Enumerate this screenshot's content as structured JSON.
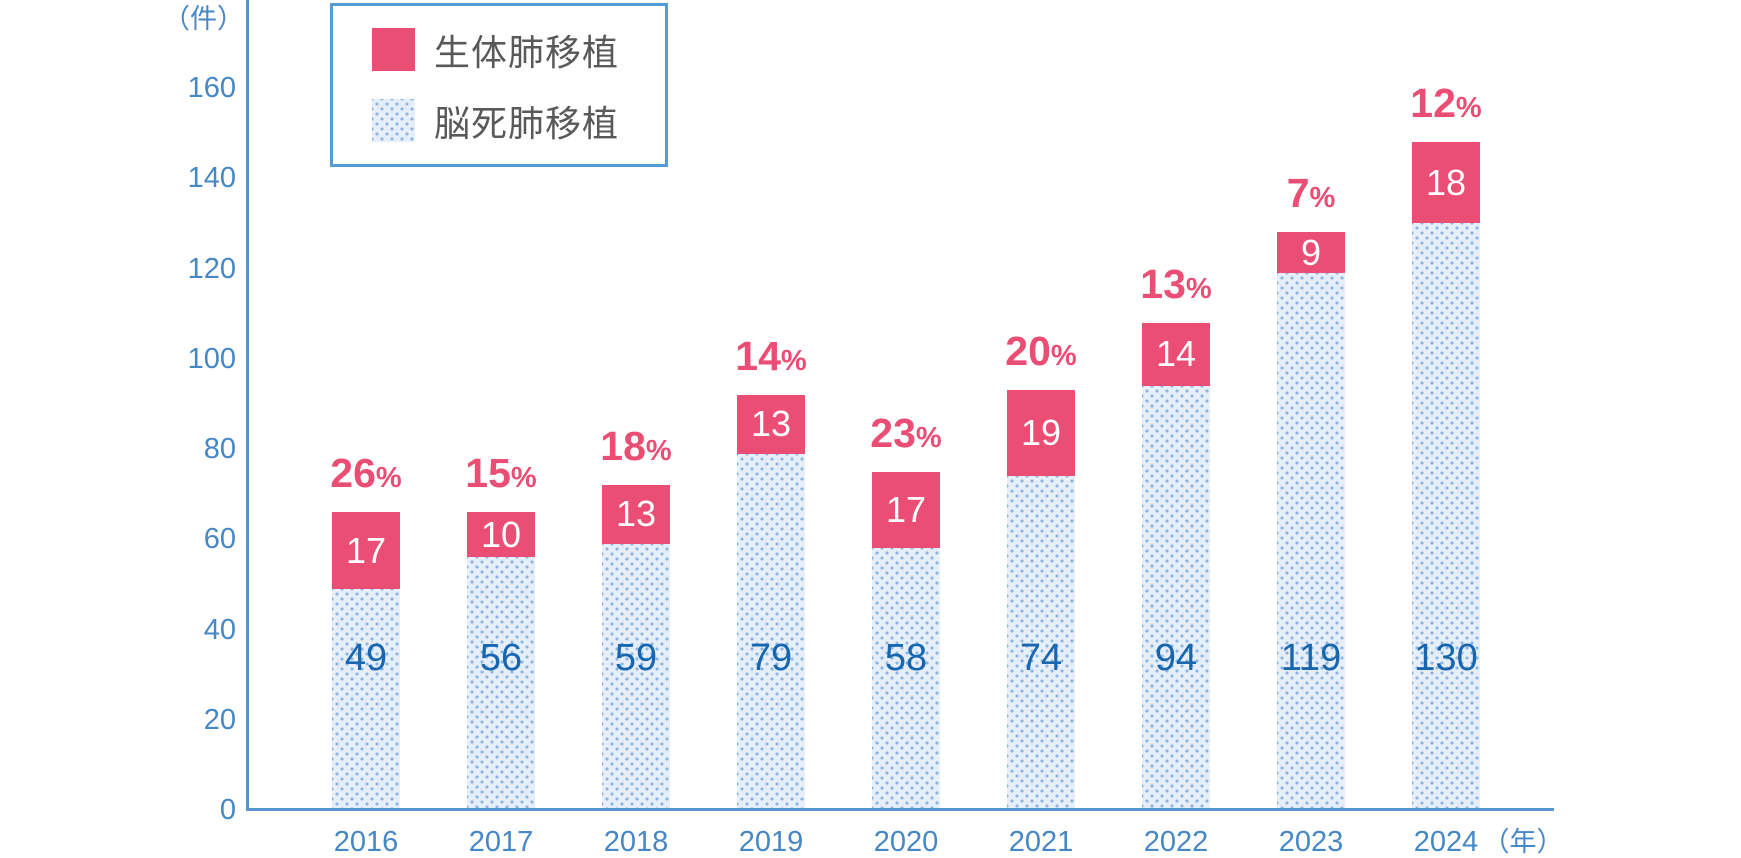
{
  "chart_data": {
    "type": "bar",
    "stacked": true,
    "categories": [
      "2016",
      "2017",
      "2018",
      "2019",
      "2020",
      "2021",
      "2022",
      "2023",
      "2024"
    ],
    "series": [
      {
        "name": "生体肺移植",
        "color": "#eb4e75",
        "values": [
          17,
          10,
          13,
          13,
          17,
          19,
          14,
          9,
          18
        ]
      },
      {
        "name": "脳死肺移植",
        "pattern": "light-blue-dotted",
        "values": [
          49,
          56,
          59,
          79,
          58,
          74,
          94,
          119,
          130
        ]
      }
    ],
    "percent_labels": [
      "26%",
      "15%",
      "18%",
      "14%",
      "23%",
      "20%",
      "13%",
      "7%",
      "12%"
    ],
    "ylabel": "（件）",
    "xlabel": "（年）",
    "ylim": [
      0,
      160
    ],
    "yticks": [
      0,
      20,
      40,
      60,
      80,
      100,
      120,
      140,
      160
    ],
    "grid": false,
    "legend_position": "top-left"
  },
  "colors": {
    "living_pink": "#eb4e75",
    "dot_fill": "#8ab5e1",
    "dot_background": "#e6eff9",
    "axis_blue": "#5795d0",
    "tick_text_blue": "#4687c6",
    "value_text_blue": "#1766af",
    "legend_text_gray": "#58595b",
    "pink_value_text_white": "#ffffff"
  }
}
